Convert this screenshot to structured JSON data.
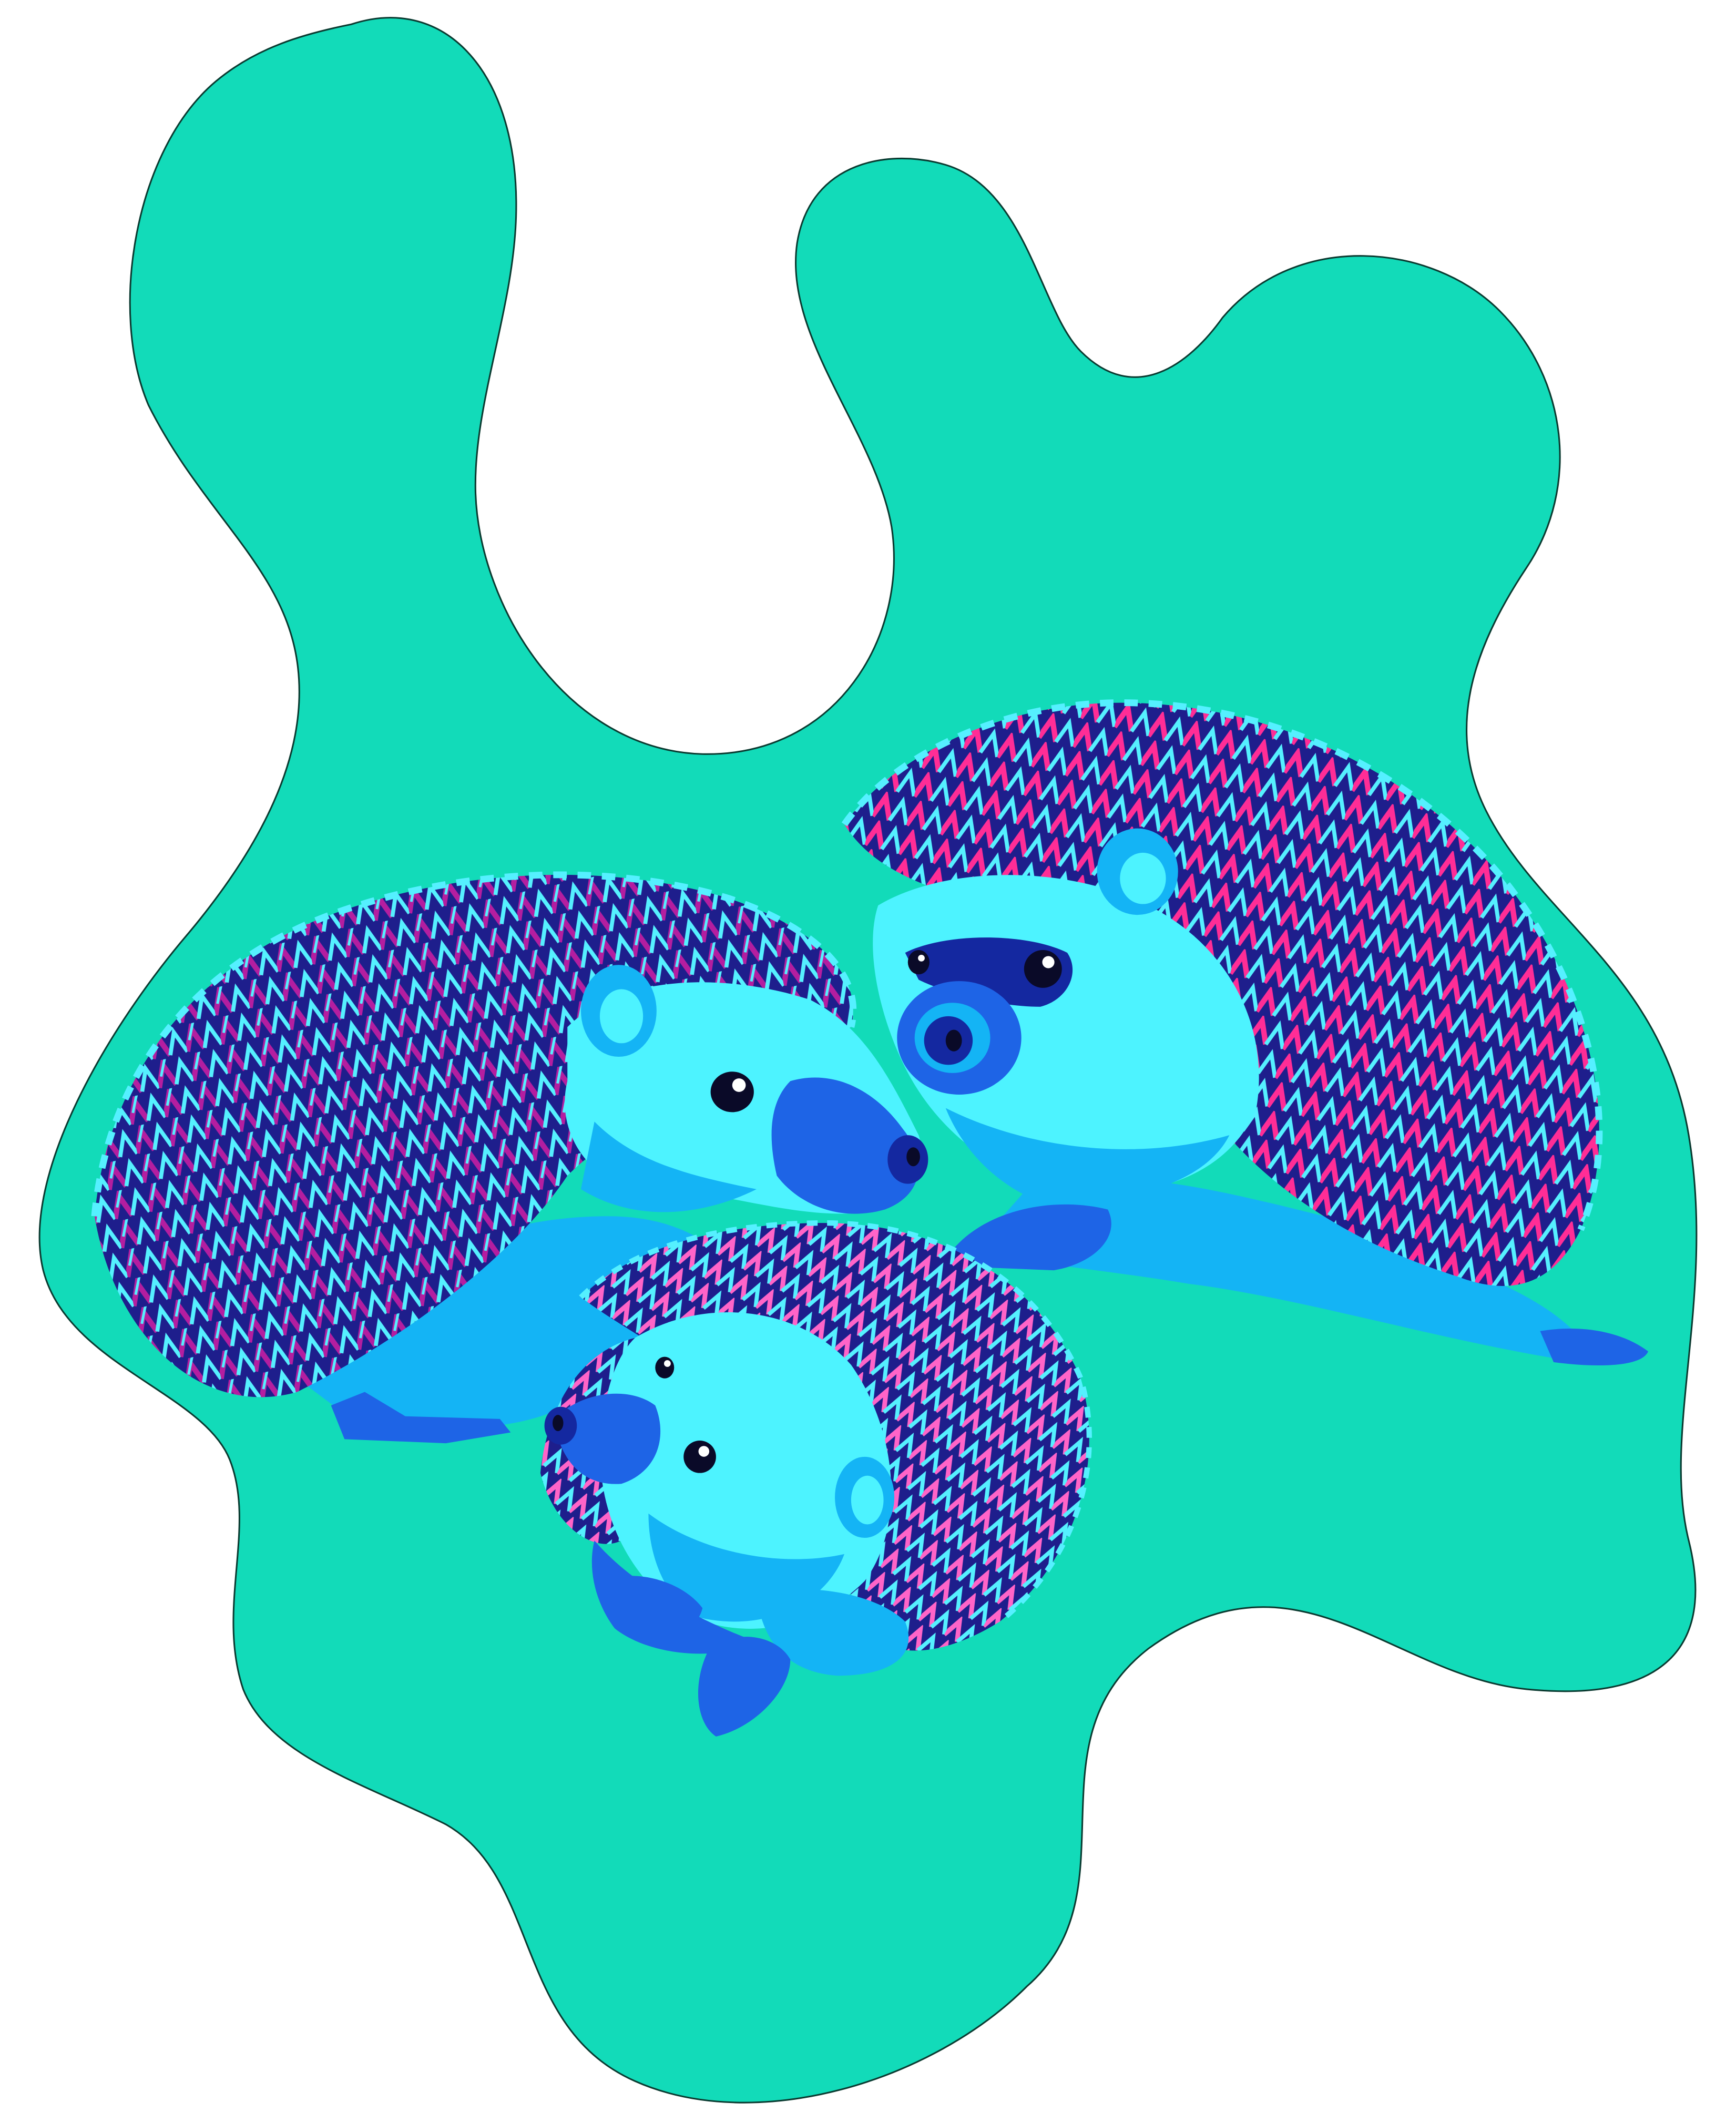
{
  "illustration": {
    "subject": "three-hedgehogs",
    "colors": {
      "background": "#ffffff",
      "blob": "#12dbb9",
      "blob_outline": "#0a3a30",
      "fur_light": "#4df3ff",
      "fur_mid": "#14b4f5",
      "fur_dark": "#1e64e6",
      "fur_deep": "#1428a0",
      "spine_magenta": "#b41ea0",
      "spine_pink": "#ff2d96",
      "spine_lightpink": "#ff64c8",
      "spine_navy": "#1e1e8c",
      "spine_cyan": "#55f0ff",
      "eye": "#0a0a28",
      "eye_highlight": "#ffffff"
    }
  }
}
